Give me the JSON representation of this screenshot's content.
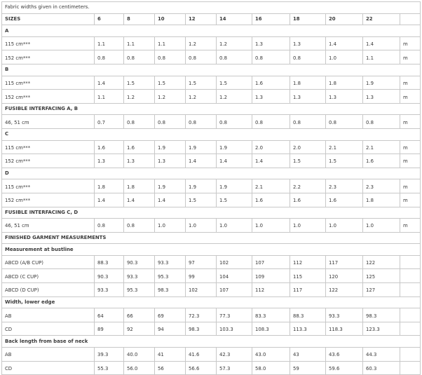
{
  "note": "Fabric widths given in centimeters.",
  "header": {
    "label": "SIZES",
    "sizes": [
      "6",
      "8",
      "10",
      "12",
      "14",
      "16",
      "18",
      "20",
      "22"
    ]
  },
  "rows": [
    {
      "type": "section",
      "label": "A"
    },
    {
      "type": "row",
      "label": "115 cm***",
      "values": [
        "1.1",
        "1.1",
        "1.1",
        "1.2",
        "1.2",
        "1.3",
        "1.3",
        "1.4",
        "1.4"
      ],
      "unit": "m"
    },
    {
      "type": "row",
      "label": "152 cm***",
      "values": [
        "0.8",
        "0.8",
        "0.8",
        "0.8",
        "0.8",
        "0.8",
        "0.8",
        "1.0",
        "1.1"
      ],
      "unit": "m"
    },
    {
      "type": "section",
      "label": "B"
    },
    {
      "type": "row",
      "label": "115 cm***",
      "values": [
        "1.4",
        "1.5",
        "1.5",
        "1.5",
        "1.5",
        "1.6",
        "1.8",
        "1.8",
        "1.9"
      ],
      "unit": "m"
    },
    {
      "type": "row",
      "label": "152 cm***",
      "values": [
        "1.1",
        "1.2",
        "1.2",
        "1.2",
        "1.2",
        "1.3",
        "1.3",
        "1.3",
        "1.3"
      ],
      "unit": "m"
    },
    {
      "type": "section",
      "label": "FUSIBLE INTERFACING A, B"
    },
    {
      "type": "row",
      "label": "46, 51 cm",
      "values": [
        "0.7",
        "0.8",
        "0.8",
        "0.8",
        "0.8",
        "0.8",
        "0.8",
        "0.8",
        "0.8"
      ],
      "unit": "m"
    },
    {
      "type": "section",
      "label": "C"
    },
    {
      "type": "row",
      "label": "115 cm***",
      "values": [
        "1.6",
        "1.6",
        "1.9",
        "1.9",
        "1.9",
        "2.0",
        "2.0",
        "2.1",
        "2.1"
      ],
      "unit": "m"
    },
    {
      "type": "row",
      "label": "152 cm***",
      "values": [
        "1.3",
        "1.3",
        "1.3",
        "1.4",
        "1.4",
        "1.4",
        "1.5",
        "1.5",
        "1.6"
      ],
      "unit": "m"
    },
    {
      "type": "section",
      "label": "D"
    },
    {
      "type": "row",
      "label": "115 cm***",
      "values": [
        "1.8",
        "1.8",
        "1.9",
        "1.9",
        "1.9",
        "2.1",
        "2.2",
        "2.3",
        "2.3"
      ],
      "unit": "m"
    },
    {
      "type": "row",
      "label": "152 cm***",
      "values": [
        "1.4",
        "1.4",
        "1.4",
        "1.5",
        "1.5",
        "1.6",
        "1.6",
        "1.6",
        "1.8"
      ],
      "unit": "m"
    },
    {
      "type": "section",
      "label": "FUSIBLE INTERFACING C, D"
    },
    {
      "type": "row",
      "label": "46, 51 cm",
      "values": [
        "0.8",
        "0.8",
        "1.0",
        "1.0",
        "1.0",
        "1.0",
        "1.0",
        "1.0",
        "1.0"
      ],
      "unit": "m"
    },
    {
      "type": "section",
      "label": "FINISHED GARMENT MEASUREMENTS"
    },
    {
      "type": "section",
      "label": "Measurement at bustline"
    },
    {
      "type": "row",
      "label": "ABCD (A/B CUP)",
      "values": [
        "88.3",
        "90.3",
        "93.3",
        "97",
        "102",
        "107",
        "112",
        "117",
        "122"
      ],
      "unit": ""
    },
    {
      "type": "row",
      "label": "ABCD (C CUP)",
      "values": [
        "90.3",
        "93.3",
        "95.3",
        "99",
        "104",
        "109",
        "115",
        "120",
        "125"
      ],
      "unit": ""
    },
    {
      "type": "row",
      "label": "ABCD (D CUP)",
      "values": [
        "93.3",
        "95.3",
        "98.3",
        "102",
        "107",
        "112",
        "117",
        "122",
        "127"
      ],
      "unit": ""
    },
    {
      "type": "section",
      "label": "Width, lower edge"
    },
    {
      "type": "row",
      "label": "AB",
      "values": [
        "64",
        "66",
        "69",
        "72.3",
        "77.3",
        "83.3",
        "88.3",
        "93.3",
        "98.3"
      ],
      "unit": ""
    },
    {
      "type": "row",
      "label": "CD",
      "values": [
        "89",
        "92",
        "94",
        "98.3",
        "103.3",
        "108.3",
        "113.3",
        "118.3",
        "123.3"
      ],
      "unit": ""
    },
    {
      "type": "section",
      "label": "Back length from base of neck"
    },
    {
      "type": "row",
      "label": "AB",
      "values": [
        "39.3",
        "40.0",
        "41",
        "41.6",
        "42.3",
        "43.0",
        "43",
        "43.6",
        "44.3"
      ],
      "unit": ""
    },
    {
      "type": "row",
      "label": "CD",
      "values": [
        "55.3",
        "56.0",
        "56",
        "56.6",
        "57.3",
        "58.0",
        "59",
        "59.6",
        "60.3"
      ],
      "unit": ""
    }
  ]
}
